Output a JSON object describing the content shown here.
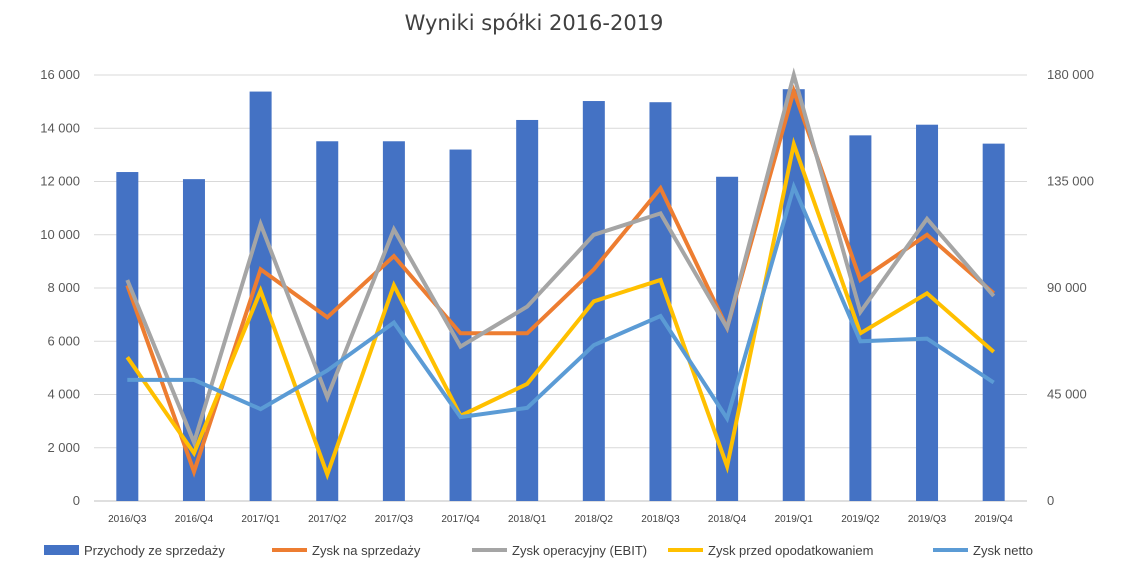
{
  "chart_data": {
    "type": "bar",
    "title": "Wyniki spółki 2016-2019",
    "categories": [
      "2016/Q3",
      "2016/Q4",
      "2017/Q1",
      "2017/Q2",
      "2017/Q3",
      "2017/Q4",
      "2018/Q1",
      "2018/Q2",
      "2018/Q3",
      "2018/Q4",
      "2019/Q1",
      "2019/Q2",
      "2019/Q3",
      "2019/Q4"
    ],
    "y_left": {
      "min": 0,
      "max": 16000,
      "ticks": [
        0,
        2000,
        4000,
        6000,
        8000,
        10000,
        12000,
        14000,
        16000
      ],
      "tick_labels": [
        "0",
        "2 000",
        "4 000",
        "6 000",
        "8 000",
        "10 000",
        "12 000",
        "14 000",
        "16 000"
      ]
    },
    "y_right": {
      "min": 0,
      "max": 180000,
      "ticks": [
        0,
        45000,
        90000,
        135000,
        180000
      ],
      "tick_labels": [
        "0",
        "45 000",
        "90 000",
        "135 000",
        "180 000"
      ]
    },
    "grid": true,
    "legend": "bottom",
    "series": [
      {
        "name": "Przychody ze sprzedaży",
        "type": "bar",
        "axis": "right",
        "color": "#4472C4",
        "values": [
          139000,
          136000,
          173000,
          152000,
          152000,
          148500,
          161000,
          169000,
          168500,
          137000,
          174000,
          154500,
          159000,
          151000
        ]
      },
      {
        "name": "Zysk na sprzedaży",
        "type": "line",
        "axis": "left",
        "color": "#ED7D31",
        "values": [
          8100,
          1100,
          8700,
          6900,
          9200,
          6300,
          6300,
          8700,
          11750,
          6500,
          15400,
          8300,
          10000,
          7800
        ]
      },
      {
        "name": "Zysk operacyjny (EBIT)",
        "type": "line",
        "axis": "left",
        "color": "#A5A5A5",
        "values": [
          8300,
          2200,
          10400,
          3900,
          10200,
          5800,
          7300,
          10000,
          10800,
          6500,
          16000,
          7100,
          10600,
          7700
        ]
      },
      {
        "name": "Zysk przed opodatkowaniem",
        "type": "line",
        "axis": "left",
        "color": "#FFC000",
        "values": [
          5400,
          1800,
          7900,
          1000,
          8100,
          3200,
          4400,
          7500,
          8300,
          1300,
          13400,
          6300,
          7800,
          5600
        ]
      },
      {
        "name": "Zysk netto",
        "type": "line",
        "axis": "left",
        "color": "#5B9BD5",
        "values": [
          4550,
          4550,
          3450,
          4900,
          6700,
          3150,
          3500,
          5850,
          6950,
          3100,
          11800,
          6000,
          6100,
          4450
        ]
      }
    ]
  }
}
